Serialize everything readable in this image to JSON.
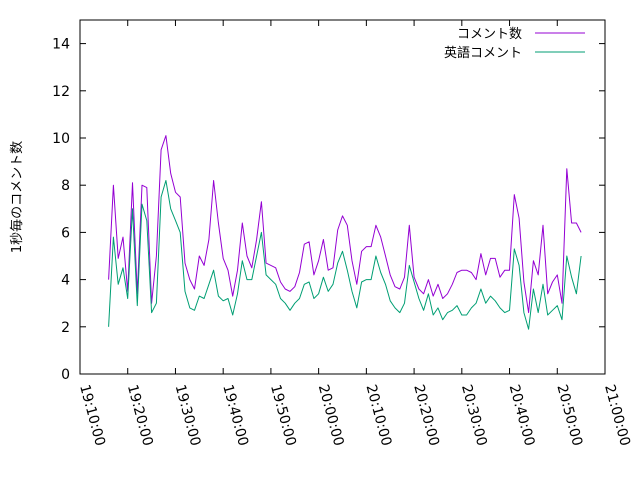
{
  "chart_data": {
    "type": "line",
    "ylabel": "1秒毎のコメント数",
    "xlabel": "",
    "ylim": [
      0,
      15
    ],
    "yticks": [
      0,
      2,
      4,
      6,
      8,
      10,
      12,
      14
    ],
    "xlim": [
      "19:10:00",
      "21:00:00"
    ],
    "xticks": [
      "19:10:00",
      "19:20:00",
      "19:30:00",
      "19:40:00",
      "19:50:00",
      "20:00:00",
      "20:10:00",
      "20:20:00",
      "20:30:00",
      "20:40:00",
      "20:50:00",
      "21:00:00"
    ],
    "grid": false,
    "legend_position": "top-right",
    "x": [
      "19:16:00",
      "19:17:00",
      "19:18:00",
      "19:19:00",
      "19:20:00",
      "19:21:00",
      "19:22:00",
      "19:23:00",
      "19:24:00",
      "19:25:00",
      "19:26:00",
      "19:27:00",
      "19:28:00",
      "19:29:00",
      "19:30:00",
      "19:31:00",
      "19:32:00",
      "19:33:00",
      "19:34:00",
      "19:35:00",
      "19:36:00",
      "19:37:00",
      "19:38:00",
      "19:39:00",
      "19:40:00",
      "19:41:00",
      "19:42:00",
      "19:43:00",
      "19:44:00",
      "19:45:00",
      "19:46:00",
      "19:47:00",
      "19:48:00",
      "19:49:00",
      "19:50:00",
      "19:51:00",
      "19:52:00",
      "19:53:00",
      "19:54:00",
      "19:55:00",
      "19:56:00",
      "19:57:00",
      "19:58:00",
      "19:59:00",
      "20:00:00",
      "20:01:00",
      "20:02:00",
      "20:03:00",
      "20:04:00",
      "20:05:00",
      "20:06:00",
      "20:07:00",
      "20:08:00",
      "20:09:00",
      "20:10:00",
      "20:11:00",
      "20:12:00",
      "20:13:00",
      "20:14:00",
      "20:15:00",
      "20:16:00",
      "20:17:00",
      "20:18:00",
      "20:19:00",
      "20:20:00",
      "20:21:00",
      "20:22:00",
      "20:23:00",
      "20:24:00",
      "20:25:00",
      "20:26:00",
      "20:27:00",
      "20:28:00",
      "20:29:00",
      "20:30:00",
      "20:31:00",
      "20:32:00",
      "20:33:00",
      "20:34:00",
      "20:35:00",
      "20:36:00",
      "20:37:00",
      "20:38:00",
      "20:39:00",
      "20:40:00",
      "20:41:00",
      "20:42:00",
      "20:43:00",
      "20:44:00",
      "20:45:00",
      "20:46:00",
      "20:47:00",
      "20:48:00",
      "20:49:00",
      "20:50:00",
      "20:51:00",
      "20:52:00",
      "20:53:00",
      "20:54:00",
      "20:55:00"
    ],
    "series": [
      {
        "name": "コメント数",
        "color": "#9400d3",
        "values": [
          4.0,
          8.0,
          4.9,
          5.8,
          3.5,
          8.1,
          3.4,
          8.0,
          7.9,
          3.0,
          5.0,
          9.5,
          10.1,
          8.5,
          7.7,
          7.5,
          4.7,
          4.0,
          3.6,
          5.0,
          4.6,
          5.7,
          8.2,
          6.4,
          4.9,
          4.4,
          3.3,
          4.4,
          6.4,
          5.0,
          4.5,
          5.7,
          7.3,
          4.7,
          4.6,
          4.5,
          3.9,
          3.6,
          3.5,
          3.7,
          4.3,
          5.5,
          5.6,
          4.2,
          4.8,
          5.7,
          4.4,
          4.5,
          6.1,
          6.7,
          6.3,
          4.8,
          3.8,
          5.2,
          5.4,
          5.4,
          6.3,
          5.8,
          5.0,
          4.2,
          3.7,
          3.6,
          4.1,
          6.3,
          4.1,
          3.6,
          3.4,
          4.0,
          3.3,
          3.8,
          3.2,
          3.4,
          3.8,
          4.3,
          4.4,
          4.4,
          4.3,
          4.0,
          5.1,
          4.2,
          4.9,
          4.9,
          4.1,
          4.4,
          4.4,
          7.6,
          6.6,
          3.9,
          2.6,
          4.8,
          4.2,
          6.3,
          3.4,
          3.9,
          4.2,
          3.0,
          8.7,
          6.4,
          6.4,
          6.0
        ]
      },
      {
        "name": "英語コメント",
        "color": "#009e73",
        "values": [
          2.0,
          5.8,
          3.8,
          4.5,
          3.2,
          7.0,
          2.9,
          7.2,
          6.5,
          2.6,
          3.0,
          7.5,
          8.2,
          7.0,
          6.5,
          6.0,
          3.5,
          2.8,
          2.7,
          3.3,
          3.2,
          3.8,
          4.4,
          3.3,
          3.1,
          3.2,
          2.5,
          3.4,
          4.8,
          4.0,
          4.0,
          5.0,
          6.0,
          4.2,
          4.0,
          3.8,
          3.2,
          3.0,
          2.7,
          3.0,
          3.2,
          3.8,
          3.9,
          3.2,
          3.4,
          4.1,
          3.5,
          3.8,
          4.7,
          5.2,
          4.4,
          3.5,
          2.8,
          3.9,
          4.0,
          4.0,
          5.0,
          4.3,
          3.8,
          3.1,
          2.8,
          2.6,
          3.0,
          4.6,
          3.9,
          3.2,
          2.7,
          3.4,
          2.5,
          2.8,
          2.3,
          2.6,
          2.7,
          2.9,
          2.5,
          2.5,
          2.8,
          3.0,
          3.6,
          3.0,
          3.3,
          3.1,
          2.8,
          2.6,
          2.7,
          5.3,
          4.6,
          2.6,
          1.9,
          3.6,
          2.6,
          3.8,
          2.5,
          2.7,
          2.9,
          2.3,
          5.0,
          4.1,
          3.4,
          5.0
        ]
      }
    ]
  }
}
